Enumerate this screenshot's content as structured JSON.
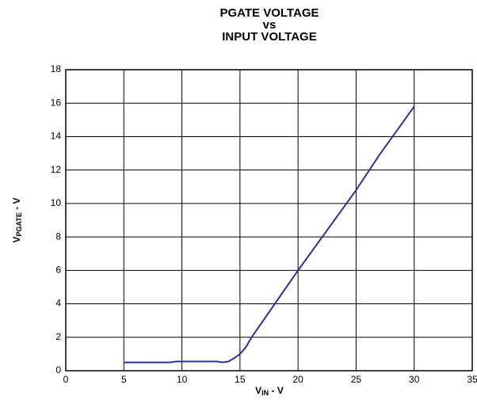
{
  "chart_data": {
    "type": "line",
    "title": [
      "PGATE VOLTAGE",
      "vs",
      "INPUT VOLTAGE"
    ],
    "x_label": {
      "base": "V",
      "subscript": "IN",
      "suffix": " - V"
    },
    "y_label": {
      "base": "V",
      "subscript": "PGATE",
      "suffix": " - V"
    },
    "xlim": [
      0,
      35
    ],
    "xticks": [
      0,
      5,
      10,
      15,
      20,
      25,
      30,
      35
    ],
    "ylim": [
      0,
      18
    ],
    "yticks": [
      0,
      2,
      4,
      6,
      8,
      10,
      12,
      14,
      16,
      18
    ],
    "grid": true,
    "series": [
      {
        "color": "#2e3192",
        "x": [
          5,
          7,
          9,
          9.5,
          11,
          13,
          13.5,
          14,
          14.5,
          15,
          15.5,
          16,
          18,
          20,
          22.5,
          25,
          27,
          30
        ],
        "values": [
          0.5,
          0.5,
          0.5,
          0.55,
          0.55,
          0.55,
          0.5,
          0.55,
          0.75,
          1.0,
          1.4,
          2.0,
          4.0,
          6.0,
          8.4,
          10.8,
          12.9,
          15.8
        ]
      }
    ]
  }
}
